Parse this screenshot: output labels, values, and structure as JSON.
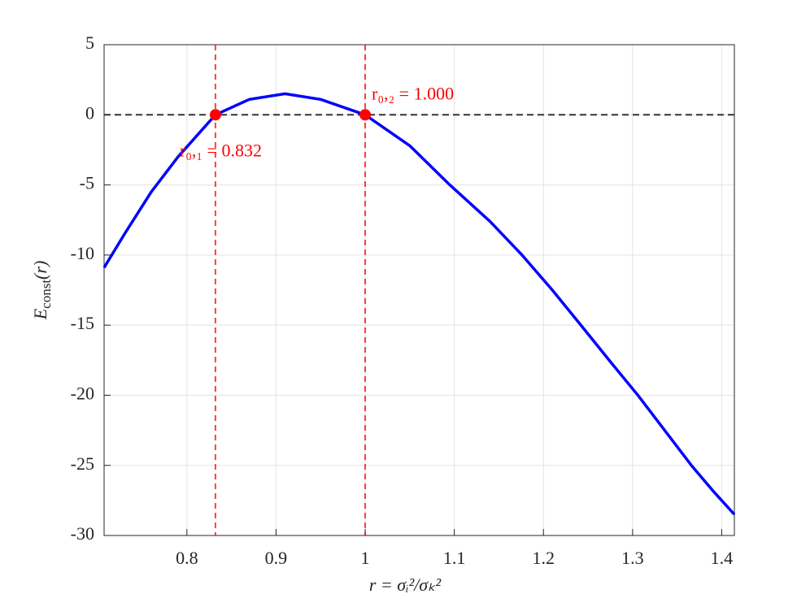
{
  "chart_data": {
    "type": "line",
    "x_label": "r = σᵢ²/σₖ²",
    "y_label": {
      "symbol": "E",
      "subscript": "const",
      "argument": "(r)"
    },
    "x": [
      0.7071,
      0.73,
      0.76,
      0.79,
      0.832,
      0.87,
      0.91,
      0.95,
      1.0,
      1.05,
      1.095,
      1.14,
      1.176,
      1.21,
      1.242,
      1.275,
      1.306,
      1.336,
      1.366,
      1.39,
      1.4142
    ],
    "series": [
      {
        "color": "#0000ff",
        "values": [
          -10.9,
          -8.5,
          -5.5,
          -3.0,
          0,
          1.1,
          1.5,
          1.1,
          0,
          -2.2,
          -5,
          -7.6,
          -10,
          -12.5,
          -15,
          -17.6,
          -20,
          -22.5,
          -25,
          -26.8,
          -28.5
        ]
      }
    ],
    "roots": [
      {
        "x": 0.832,
        "y": 0,
        "label": "r₀,₁ = 0.832"
      },
      {
        "x": 1.0,
        "y": 0,
        "label": "r₀,₂ = 1.000"
      }
    ],
    "root_color": "#ff0000",
    "reference_y": 0,
    "xlim": [
      0.7071,
      1.4142
    ],
    "ylim": [
      -30,
      5
    ],
    "xticks": [
      0.8,
      0.9,
      1,
      1.1,
      1.2,
      1.3,
      1.4
    ],
    "yticks": [
      5,
      0,
      -5,
      -10,
      -15,
      -20,
      -25,
      -30
    ],
    "grid": true
  }
}
